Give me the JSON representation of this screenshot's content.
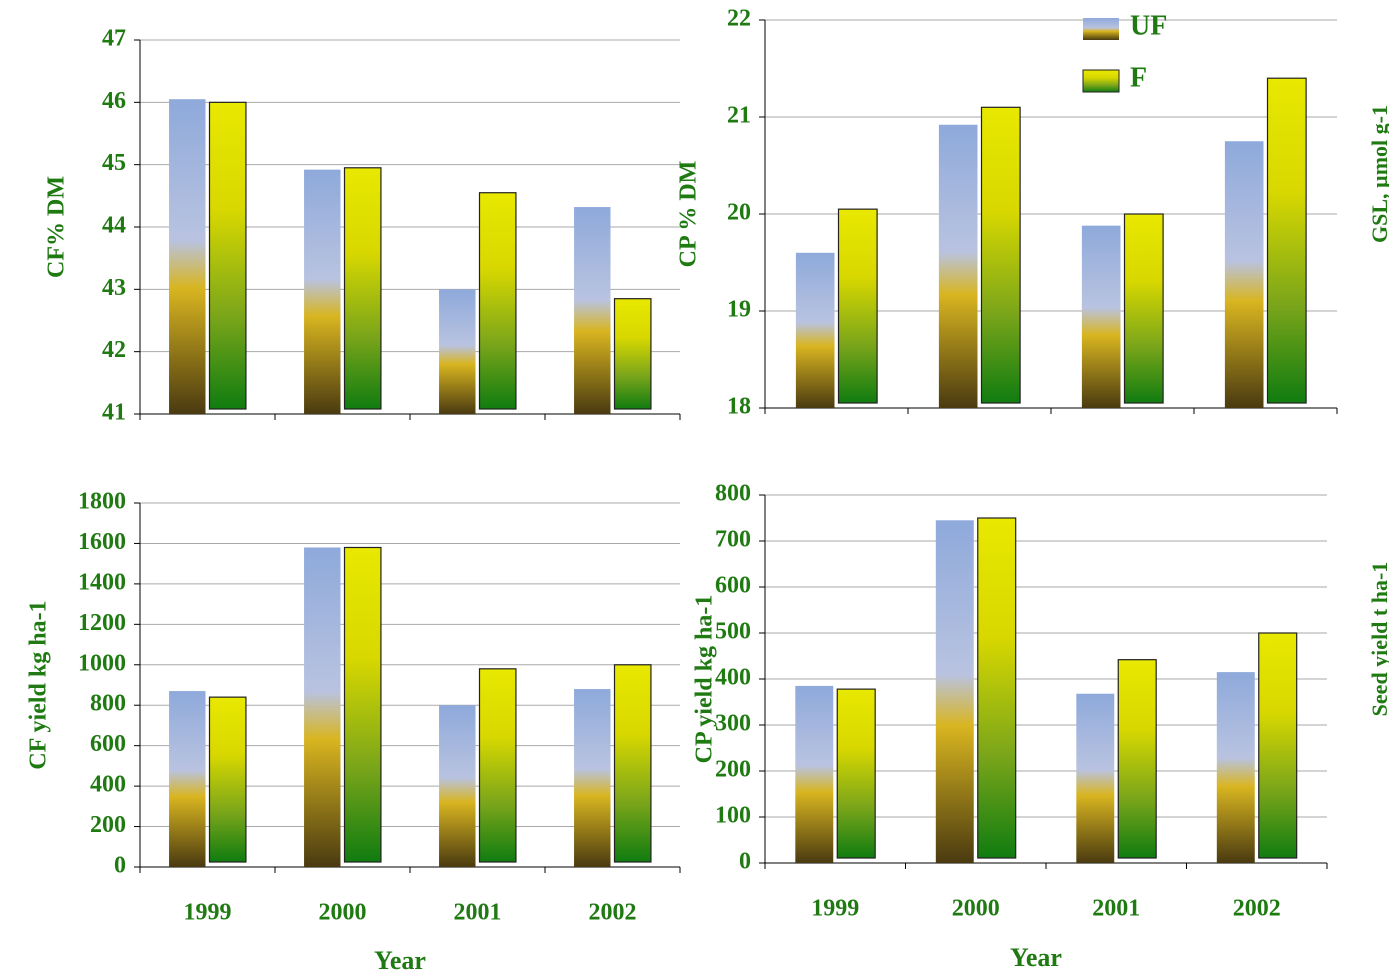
{
  "chart_data": [
    {
      "type": "bar",
      "ylabel": "CF% DM",
      "categories": [
        null,
        null,
        null,
        null
      ],
      "series": [
        {
          "color": "#8ea9db",
          "values": [
            46.05,
            44.92,
            43.0,
            44.32
          ]
        },
        {
          "color": "#e8e800",
          "values": [
            46.0,
            44.95,
            44.55,
            42.85
          ]
        }
      ],
      "ylim": [
        41,
        47
      ],
      "yticks": [
        41,
        42,
        43,
        44,
        45,
        46,
        47
      ],
      "grid": true
    },
    {
      "type": "bar",
      "ylabel": "CP % DM",
      "annotation": "GSL, µmol g-1",
      "categories": [
        null,
        null,
        null,
        null
      ],
      "series": [
        {
          "name": "UF",
          "color": "#8ea9db",
          "values": [
            19.6,
            20.92,
            19.88,
            20.75
          ]
        },
        {
          "name": "F",
          "color": "#e8e800",
          "values": [
            20.05,
            21.1,
            20.0,
            21.4
          ]
        }
      ],
      "ylim": [
        18,
        22
      ],
      "yticks": [
        18,
        19,
        20,
        21,
        22
      ],
      "grid": true,
      "legend": "top"
    },
    {
      "type": "bar",
      "ylabel": "CF yield kg ha-1",
      "xlabel": "Year",
      "categories": [
        "1999",
        "2000",
        "2001",
        "2002"
      ],
      "series": [
        {
          "color": "#8ea9db",
          "values": [
            870,
            1580,
            800,
            880
          ]
        },
        {
          "color": "#e8e800",
          "values": [
            840,
            1580,
            980,
            1000
          ]
        }
      ],
      "ylim": [
        0,
        1800
      ],
      "yticks": [
        0,
        200,
        400,
        600,
        800,
        1000,
        1200,
        1400,
        1600,
        1800
      ],
      "grid": true
    },
    {
      "type": "bar",
      "ylabel": "CP yield kg ha-1",
      "xlabel": "Year",
      "annotation": "Seed yield t ha-1",
      "categories": [
        "1999",
        "2000",
        "2001",
        "2002"
      ],
      "series": [
        {
          "color": "#8ea9db",
          "values": [
            385,
            745,
            368,
            415
          ]
        },
        {
          "color": "#e8e800",
          "values": [
            378,
            750,
            442,
            500
          ]
        }
      ],
      "ylim": [
        0,
        800
      ],
      "yticks": [
        0,
        100,
        200,
        300,
        400,
        500,
        600,
        700,
        800
      ],
      "grid": true
    }
  ]
}
